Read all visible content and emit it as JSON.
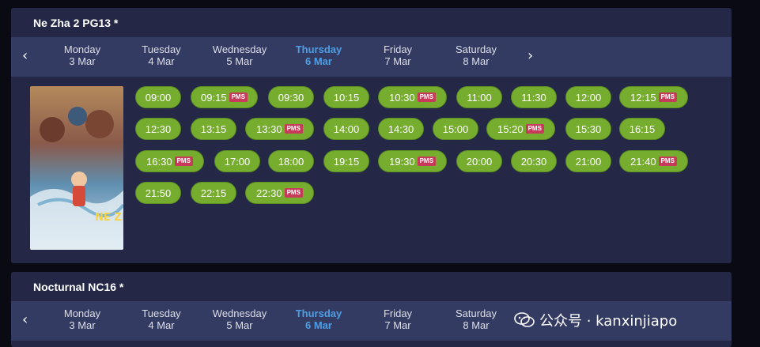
{
  "movies": [
    {
      "title": "Ne Zha 2 PG13 *",
      "days": [
        {
          "name": "Monday",
          "date": "3 Mar"
        },
        {
          "name": "Tuesday",
          "date": "4 Mar"
        },
        {
          "name": "Wednesday",
          "date": "5 Mar"
        },
        {
          "name": "Thursday",
          "date": "6 Mar",
          "active": true
        },
        {
          "name": "Friday",
          "date": "7 Mar"
        },
        {
          "name": "Saturday",
          "date": "8 Mar"
        }
      ],
      "showtimes": [
        {
          "time": "09:00",
          "badge": ""
        },
        {
          "time": "09:15",
          "badge": "PMS"
        },
        {
          "time": "09:30",
          "badge": ""
        },
        {
          "time": "10:15",
          "badge": ""
        },
        {
          "time": "10:30",
          "badge": "PMS"
        },
        {
          "time": "11:00",
          "badge": ""
        },
        {
          "time": "11:30",
          "badge": ""
        },
        {
          "time": "12:00",
          "badge": ""
        },
        {
          "time": "12:15",
          "badge": "PMS"
        },
        {
          "time": "12:30",
          "badge": ""
        },
        {
          "time": "13:15",
          "badge": ""
        },
        {
          "time": "13:30",
          "badge": "PMS"
        },
        {
          "time": "14:00",
          "badge": ""
        },
        {
          "time": "14:30",
          "badge": ""
        },
        {
          "time": "15:00",
          "badge": ""
        },
        {
          "time": "15:20",
          "badge": "PMS"
        },
        {
          "time": "15:30",
          "badge": ""
        },
        {
          "time": "16:15",
          "badge": ""
        },
        {
          "time": "16:30",
          "badge": "PMS"
        },
        {
          "time": "17:00",
          "badge": ""
        },
        {
          "time": "18:00",
          "badge": ""
        },
        {
          "time": "19:15",
          "badge": ""
        },
        {
          "time": "19:30",
          "badge": "PMS"
        },
        {
          "time": "20:00",
          "badge": ""
        },
        {
          "time": "20:30",
          "badge": ""
        },
        {
          "time": "21:00",
          "badge": ""
        },
        {
          "time": "21:40",
          "badge": "PMS"
        },
        {
          "time": "21:50",
          "badge": ""
        },
        {
          "time": "22:15",
          "badge": ""
        },
        {
          "time": "22:30",
          "badge": "PMS"
        }
      ]
    },
    {
      "title": "Nocturnal NC16 *",
      "days": [
        {
          "name": "Monday",
          "date": "3 Mar"
        },
        {
          "name": "Tuesday",
          "date": "4 Mar"
        },
        {
          "name": "Wednesday",
          "date": "5 Mar"
        },
        {
          "name": "Thursday",
          "date": "6 Mar",
          "active": true
        },
        {
          "name": "Friday",
          "date": "7 Mar"
        },
        {
          "name": "Saturday",
          "date": "8 Mar"
        }
      ]
    }
  ],
  "nav": {
    "prev_icon": "chevron-left-icon",
    "next_icon": "chevron-right-icon"
  },
  "watermark": {
    "text": "公众号 · kanxinjiapo",
    "icon": "wechat-icon"
  },
  "colors": {
    "card_bg": "#242846",
    "date_bar_bg": "#343b62",
    "active_day": "#4c9fe6",
    "showtime_bg": "#76ad2f",
    "pms_badge": "#c73a5a"
  }
}
